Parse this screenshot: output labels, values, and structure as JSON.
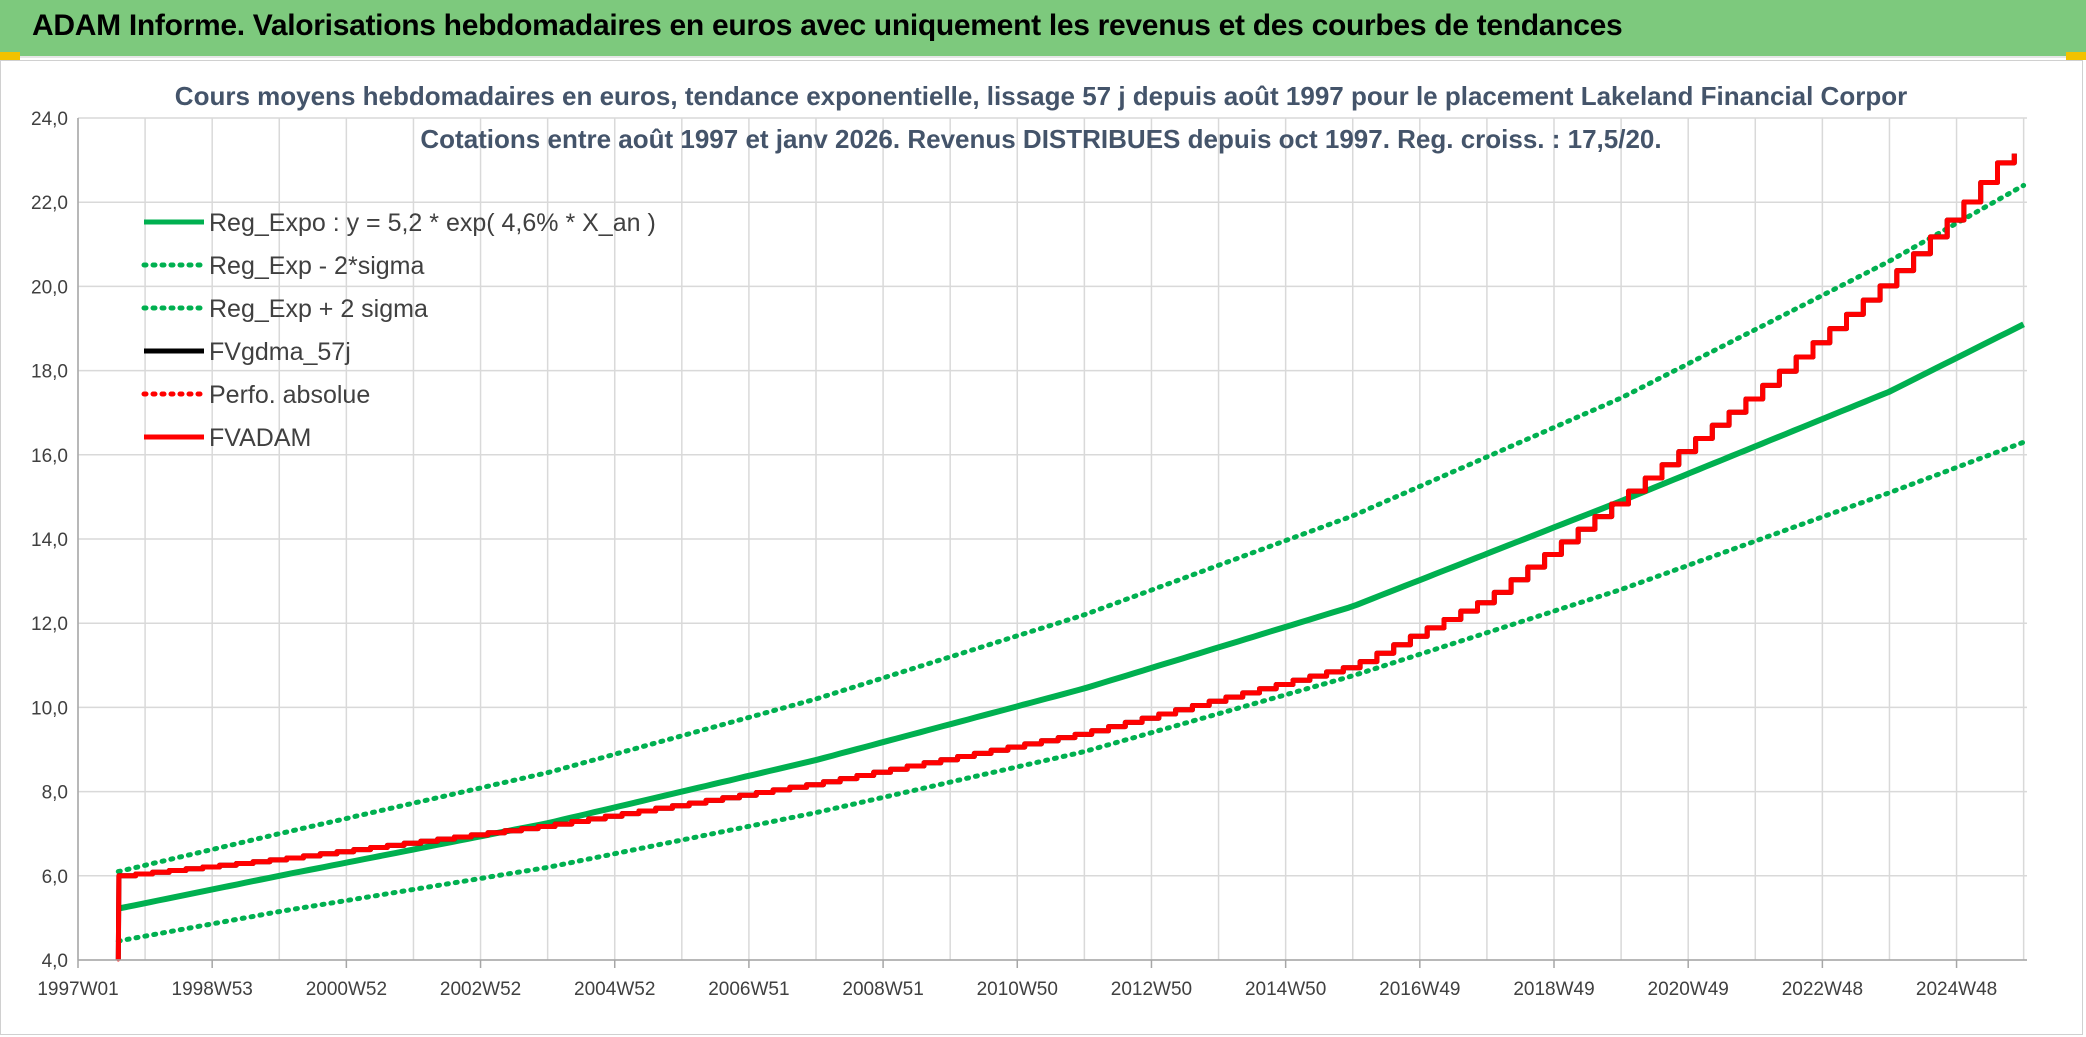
{
  "header": {
    "title": "ADAM Informe. Valorisations hebdomadaires en euros avec uniquement les revenus et des courbes de tendances"
  },
  "chart_data": {
    "type": "line",
    "title_lines": [
      "Cours moyens hebdomadaires en euros, tendance exponentielle, lissage 57 j depuis août 1997 pour le placement Lakeland Financial Corpor",
      "Cotations entre août 1997 et janv 2026. Revenus DISTRIBUES depuis oct 1997. Reg. croiss. : 17,5/20."
    ],
    "x_tick_labels": [
      "1997W01",
      "1998W53",
      "2000W52",
      "2002W52",
      "2004W52",
      "2006W51",
      "2008W51",
      "2010W50",
      "2012W50",
      "2014W50",
      "2016W49",
      "2018W49",
      "2020W49",
      "2022W48",
      "2024W48"
    ],
    "x_tick_years": [
      1997.0,
      1999.0,
      2001.0,
      2003.0,
      2005.0,
      2007.0,
      2009.0,
      2011.0,
      2013.0,
      2015.0,
      2017.0,
      2019.0,
      2021.0,
      2023.0,
      2025.0
    ],
    "xlim": [
      1997.0,
      2026.05
    ],
    "y_tick_labels": [
      "4,0",
      "6,0",
      "8,0",
      "10,0",
      "12,0",
      "14,0",
      "16,0",
      "18,0",
      "20,0",
      "22,0",
      "24,0"
    ],
    "ylim": [
      4,
      24
    ],
    "grid": true,
    "legend_position": "top-left",
    "colors": {
      "green": "#00b050",
      "black": "#000000",
      "red": "#ff0000"
    },
    "legend": [
      {
        "label": "Reg_Expo : y = 5,2 * exp( 4,6% *  X_an )",
        "color": "#00b050",
        "style": "solid"
      },
      {
        "label": "Reg_Exp - 2*sigma",
        "color": "#00b050",
        "style": "dotted"
      },
      {
        "label": "Reg_Exp + 2 sigma",
        "color": "#00b050",
        "style": "dotted"
      },
      {
        "label": "FVgdma_57j",
        "color": "#000000",
        "style": "solid"
      },
      {
        "label": "Perfo. absolue",
        "color": "#ff0000",
        "style": "dotted"
      },
      {
        "label": "FVADAM",
        "color": "#ff0000",
        "style": "solid"
      }
    ],
    "series": [
      {
        "name": "Reg_Expo : y = 5,2 * exp( 4,6% *  X_an )",
        "x": [
          1997.6,
          2000,
          2004,
          2008,
          2012,
          2016,
          2020,
          2024,
          2026.0
        ],
        "y": [
          5.22,
          6.0,
          7.25,
          8.75,
          10.45,
          12.4,
          14.9,
          17.5,
          19.1
        ]
      },
      {
        "name": "Reg_Exp - 2*sigma",
        "x": [
          1997.6,
          2000,
          2004,
          2008,
          2012,
          2016,
          2020,
          2024,
          2026.0
        ],
        "y": [
          4.45,
          5.15,
          6.2,
          7.5,
          8.95,
          10.75,
          12.8,
          15.1,
          16.3
        ]
      },
      {
        "name": "Reg_Exp + 2 sigma",
        "x": [
          1997.6,
          2000,
          2004,
          2008,
          2012,
          2016,
          2020,
          2024,
          2026.0
        ],
        "y": [
          6.1,
          7.0,
          8.45,
          10.2,
          12.2,
          14.55,
          17.35,
          20.6,
          22.4
        ]
      },
      {
        "name": "FVgdma_57j",
        "x": [
          1997.6,
          1997.61,
          2000,
          2004,
          2008,
          2012,
          2016,
          2018,
          2020,
          2022,
          2024,
          2025,
          2025.7,
          2026.0
        ],
        "y": [
          4.0,
          6.0,
          6.4,
          7.2,
          8.2,
          9.4,
          11.0,
          12.6,
          15.0,
          17.5,
          20.2,
          21.8,
          23.1,
          23.2
        ]
      },
      {
        "name": "Perfo. absolue",
        "x": [
          1997.6,
          1997.61,
          2000,
          2004,
          2008,
          2012,
          2016,
          2018,
          2020,
          2022,
          2024,
          2025,
          2025.7,
          2026.0
        ],
        "y": [
          4.0,
          6.0,
          6.4,
          7.2,
          8.2,
          9.4,
          11.0,
          12.6,
          15.0,
          17.5,
          20.2,
          21.8,
          23.1,
          23.2
        ]
      },
      {
        "name": "FVADAM",
        "x": [
          1997.6,
          1997.61,
          2000,
          2004,
          2008,
          2012,
          2016,
          2018,
          2020,
          2022,
          2024,
          2025,
          2025.7,
          2026.0
        ],
        "y": [
          4.0,
          6.0,
          6.4,
          7.2,
          8.2,
          9.4,
          11.0,
          12.6,
          15.0,
          17.5,
          20.2,
          21.8,
          23.1,
          23.2
        ]
      }
    ]
  }
}
